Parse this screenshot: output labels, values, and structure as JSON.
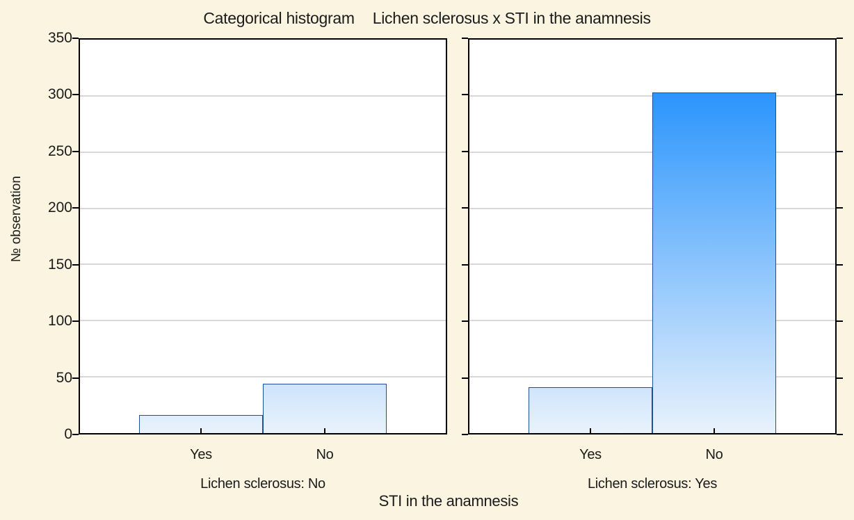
{
  "title": {
    "left": "Categorical histogram",
    "right": "Lichen sclerosus x STI in the anamnesis"
  },
  "axes": {
    "y_title": "№ observation",
    "x_title": "STI in the anamnesis",
    "y_ticks": [
      0,
      50,
      100,
      150,
      200,
      250,
      300,
      350
    ],
    "y_max": 350
  },
  "chart_data": {
    "type": "bar",
    "title": "Categorical histogram  Lichen sclerosus x STI in the anamnesis",
    "xlabel": "STI in the anamnesis",
    "ylabel": "№ observation",
    "ylim": [
      0,
      350
    ],
    "grid": "horizontal-gridlines-on",
    "legend_position": "none",
    "categories": [
      "Yes",
      "No"
    ],
    "panels": [
      {
        "caption": "Lichen sclerosus: No",
        "values": [
          16,
          44
        ]
      },
      {
        "caption": "Lichen sclerosus: Yes",
        "values": [
          41,
          303
        ]
      }
    ]
  },
  "colors": {
    "background": "#FAF4E1",
    "panel_background": "#FFFFFF",
    "frame": "#000000",
    "gridline": "#D8D8D8",
    "bar_border": "#1D4FA0",
    "bar_fill_at_max": "#0D86FC",
    "bar_fill_at_zero": "#E9F2FC",
    "bar_fill_rgb_at_max": [
      13,
      134,
      252
    ],
    "bar_fill_rgb_at_zero": [
      233,
      242,
      252
    ],
    "text": "#1B1B1B"
  }
}
